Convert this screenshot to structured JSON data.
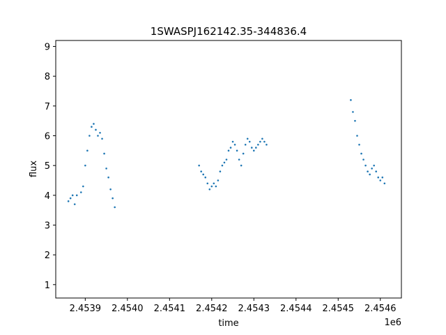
{
  "chart_data": {
    "type": "scatter",
    "title": "1SWASPJ162142.35-344836.4",
    "xlabel": "time",
    "ylabel": "flux",
    "x_offset_label": "1e6",
    "xlim": [
      2.45383,
      2.45465
    ],
    "ylim": [
      0.55,
      9.2
    ],
    "xticks": [
      2.4539,
      2.454,
      2.4541,
      2.4542,
      2.4543,
      2.4544,
      2.4545,
      2.4546
    ],
    "xtick_labels": [
      "2.4539",
      "2.4540",
      "2.4541",
      "2.4542",
      "2.4543",
      "2.4544",
      "2.4545",
      "2.4546"
    ],
    "yticks": [
      1,
      2,
      3,
      4,
      5,
      6,
      7,
      8,
      9
    ],
    "ytick_labels": [
      "1",
      "2",
      "3",
      "4",
      "5",
      "6",
      "7",
      "8",
      "9"
    ],
    "grid": false,
    "marker_color": "#1f77b4",
    "series": [
      {
        "x": [
          2.45386,
          2.453865,
          2.45387,
          2.453875,
          2.45388,
          2.45389,
          2.453895,
          2.4539,
          2.453905,
          2.45391,
          2.453915,
          2.45392,
          2.453925,
          2.45393,
          2.453935,
          2.45394,
          2.453945,
          2.45395,
          2.453955,
          2.45396,
          2.453965,
          2.45397,
          2.45417,
          2.454175,
          2.45418,
          2.454185,
          2.45419,
          2.454195,
          2.4542,
          2.454205,
          2.45421,
          2.454215,
          2.45422,
          2.454225,
          2.45423,
          2.454235,
          2.45424,
          2.454245,
          2.45425,
          2.454255,
          2.45426,
          2.454265,
          2.45427,
          2.454275,
          2.45428,
          2.454285,
          2.45429,
          2.454295,
          2.4543,
          2.454305,
          2.45431,
          2.454315,
          2.45432,
          2.454325,
          2.45433,
          2.45453,
          2.454535,
          2.45454,
          2.454545,
          2.45455,
          2.454555,
          2.45456,
          2.454565,
          2.45457,
          2.454575,
          2.45458,
          2.454585,
          2.45459,
          2.454595,
          2.4546,
          2.454605,
          2.45461
        ],
        "y": [
          3.8,
          3.9,
          4.0,
          3.7,
          4.0,
          4.1,
          4.3,
          5.0,
          5.5,
          6.0,
          6.3,
          6.4,
          6.2,
          6.0,
          6.1,
          5.9,
          5.4,
          4.9,
          4.6,
          4.2,
          3.9,
          3.6,
          5.0,
          4.8,
          4.7,
          4.6,
          4.4,
          4.2,
          4.3,
          4.4,
          4.3,
          4.5,
          4.8,
          5.0,
          5.1,
          5.2,
          5.5,
          5.6,
          5.8,
          5.7,
          5.5,
          5.2,
          5.0,
          5.4,
          5.7,
          5.9,
          5.8,
          5.6,
          5.5,
          5.6,
          5.7,
          5.8,
          5.9,
          5.8,
          5.7,
          7.2,
          6.8,
          6.5,
          6.0,
          5.7,
          5.4,
          5.2,
          5.0,
          4.8,
          4.7,
          4.9,
          5.0,
          4.8,
          4.6,
          4.5,
          4.6,
          4.4
        ]
      }
    ]
  }
}
